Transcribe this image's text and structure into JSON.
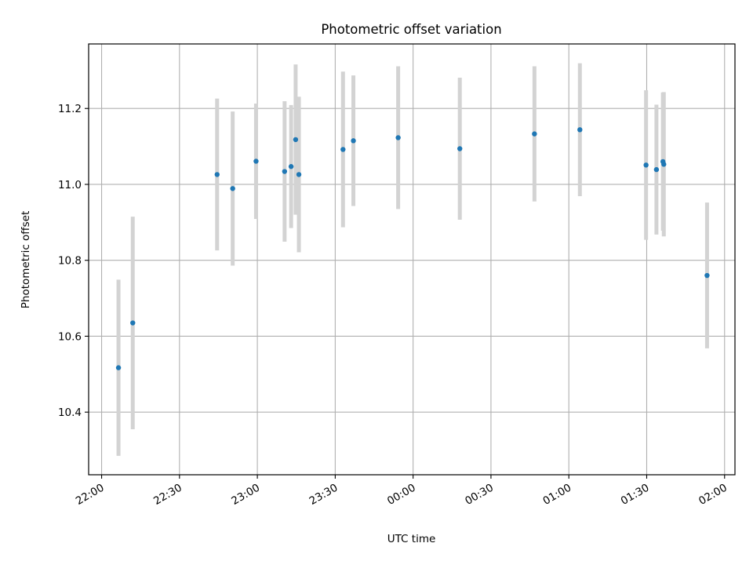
{
  "chart_data": {
    "type": "scatter",
    "title": "Photometric offset variation",
    "xlabel": "UTC time",
    "ylabel": "Photometric offset",
    "x_tick_labels": [
      "22:00",
      "22:30",
      "23:00",
      "23:30",
      "00:00",
      "00:30",
      "01:00",
      "01:30",
      "02:00"
    ],
    "y_tick_labels": [
      "10.4",
      "10.6",
      "10.8",
      "11.0",
      "11.2"
    ],
    "x_tick_values": [
      "22:00",
      "22:30",
      "23:00",
      "23:30",
      "00:00",
      "00:30",
      "01:00",
      "01:30",
      "02:00"
    ],
    "y_tick_values": [
      10.4,
      10.6,
      10.8,
      11.0,
      11.2
    ],
    "xlim": [
      "21:55",
      "02:04"
    ],
    "ylim": [
      10.235,
      11.37
    ],
    "grid": true,
    "colors": {
      "point": "#1f77b4",
      "errorbar": "#d3d3d3",
      "grid": "#b0b0b0"
    },
    "points": [
      {
        "time": "22:06:30",
        "y": 10.517,
        "yerr": 0.232
      },
      {
        "time": "22:12:00",
        "y": 10.635,
        "yerr": 0.28
      },
      {
        "time": "22:44:30",
        "y": 11.026,
        "yerr": 0.2
      },
      {
        "time": "22:50:30",
        "y": 10.989,
        "yerr": 0.203
      },
      {
        "time": "22:59:30",
        "y": 11.061,
        "yerr": 0.152
      },
      {
        "time": "23:10:30",
        "y": 11.034,
        "yerr": 0.185
      },
      {
        "time": "23:13:00",
        "y": 11.047,
        "yerr": 0.162
      },
      {
        "time": "23:14:45",
        "y": 11.118,
        "yerr": 0.198
      },
      {
        "time": "23:16:00",
        "y": 11.026,
        "yerr": 0.205
      },
      {
        "time": "23:33:00",
        "y": 11.092,
        "yerr": 0.205
      },
      {
        "time": "23:37:00",
        "y": 11.115,
        "yerr": 0.172
      },
      {
        "time": "23:54:15",
        "y": 11.123,
        "yerr": 0.188
      },
      {
        "time": "00:18:00",
        "y": 11.094,
        "yerr": 0.187
      },
      {
        "time": "00:46:45",
        "y": 11.133,
        "yerr": 0.178
      },
      {
        "time": "01:04:15",
        "y": 11.144,
        "yerr": 0.175
      },
      {
        "time": "01:29:45",
        "y": 11.051,
        "yerr": 0.197
      },
      {
        "time": "01:33:45",
        "y": 11.039,
        "yerr": 0.171
      },
      {
        "time": "01:36:15",
        "y": 11.06,
        "yerr": 0.182
      },
      {
        "time": "01:36:35",
        "y": 11.053,
        "yerr": 0.19
      },
      {
        "time": "01:53:15",
        "y": 10.76,
        "yerr": 0.192
      }
    ]
  }
}
